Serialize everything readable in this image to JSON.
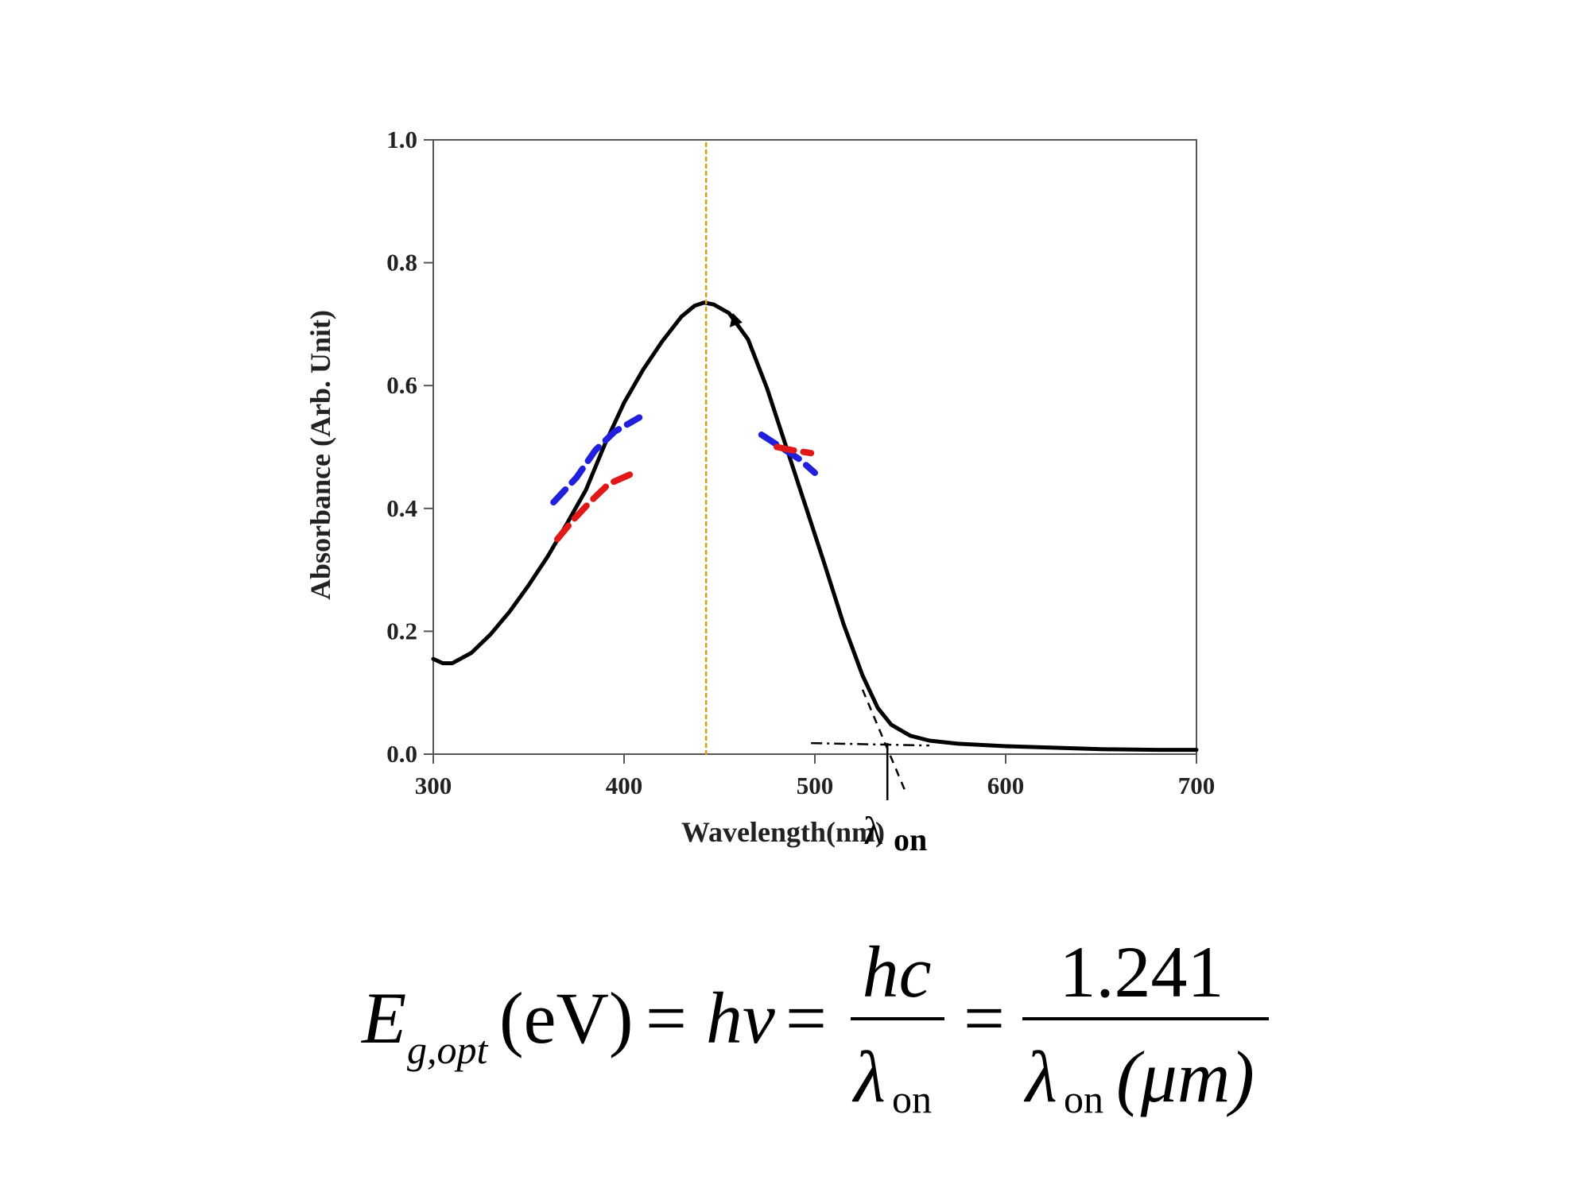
{
  "chart_data": {
    "type": "line",
    "title": "",
    "xlabel": "Wavelength(nm)",
    "ylabel": "Absorbance (Arb. Unit)",
    "xlim": [
      300,
      700
    ],
    "ylim": [
      0.0,
      1.0
    ],
    "x_ticks": [
      300,
      400,
      500,
      600,
      700
    ],
    "x_tick_labels": [
      "300",
      "400",
      "500",
      "600",
      "700"
    ],
    "y_ticks": [
      0.0,
      0.2,
      0.4,
      0.6,
      0.8,
      1.0
    ],
    "y_tick_labels": [
      "0.0",
      "0.2",
      "0.4",
      "0.6",
      "0.8",
      "1.0"
    ],
    "grid": false,
    "series": [
      {
        "name": "Absorbance",
        "color": "#000000",
        "style": "solid",
        "points": [
          [
            300,
            0.155
          ],
          [
            305,
            0.148
          ],
          [
            310,
            0.148
          ],
          [
            320,
            0.165
          ],
          [
            330,
            0.195
          ],
          [
            340,
            0.232
          ],
          [
            350,
            0.275
          ],
          [
            360,
            0.322
          ],
          [
            370,
            0.375
          ],
          [
            380,
            0.43
          ],
          [
            390,
            0.505
          ],
          [
            400,
            0.572
          ],
          [
            410,
            0.626
          ],
          [
            420,
            0.672
          ],
          [
            430,
            0.712
          ],
          [
            437,
            0.73
          ],
          [
            442,
            0.735
          ],
          [
            447,
            0.732
          ],
          [
            455,
            0.718
          ],
          [
            465,
            0.675
          ],
          [
            475,
            0.595
          ],
          [
            485,
            0.5
          ],
          [
            495,
            0.405
          ],
          [
            505,
            0.31
          ],
          [
            515,
            0.212
          ],
          [
            525,
            0.128
          ],
          [
            533,
            0.075
          ],
          [
            540,
            0.048
          ],
          [
            550,
            0.03
          ],
          [
            560,
            0.022
          ],
          [
            575,
            0.017
          ],
          [
            600,
            0.013
          ],
          [
            620,
            0.011
          ],
          [
            650,
            0.008
          ],
          [
            680,
            0.007
          ],
          [
            700,
            0.007
          ]
        ]
      },
      {
        "name": "Blue fit (rising edge)",
        "color": "#1f1fdc",
        "style": "dashed",
        "points": [
          [
            363,
            0.41
          ],
          [
            375,
            0.45
          ],
          [
            385,
            0.495
          ],
          [
            395,
            0.525
          ],
          [
            408,
            0.548
          ]
        ]
      },
      {
        "name": "Red fit (rising edge)",
        "color": "#e01818",
        "style": "dashed",
        "points": [
          [
            365,
            0.35
          ],
          [
            373,
            0.38
          ],
          [
            382,
            0.41
          ],
          [
            392,
            0.44
          ],
          [
            403,
            0.455
          ]
        ]
      },
      {
        "name": "Blue fit (falling edge)",
        "color": "#1f1fdc",
        "style": "dashed",
        "points": [
          [
            472,
            0.52
          ],
          [
            482,
            0.5
          ],
          [
            492,
            0.48
          ],
          [
            500,
            0.458
          ]
        ]
      },
      {
        "name": "Red fit (falling edge)",
        "color": "#e01818",
        "style": "dashed",
        "points": [
          [
            480,
            0.5
          ],
          [
            488,
            0.495
          ],
          [
            498,
            0.49
          ]
        ]
      },
      {
        "name": "Peak marker",
        "color": "#d4a017",
        "style": "dotted",
        "points": [
          [
            443,
            0.0
          ],
          [
            443,
            1.0
          ]
        ]
      }
    ],
    "annotations": {
      "onset_label": "λ",
      "onset_subscript": "on",
      "onset_wavelength_nm": 538,
      "tangent_line": [
        [
          525,
          0.105
        ],
        [
          548,
          -0.065
        ]
      ],
      "baseline_line": [
        [
          498,
          0.018
        ],
        [
          560,
          0.014
        ]
      ],
      "peak_arrow_at": [
        452,
        0.7
      ]
    }
  },
  "equation": {
    "lhs_symbol": "E",
    "lhs_subscript": "g,opt",
    "lhs_unit": "(eV)",
    "equals": "=",
    "hnu": "hν",
    "frac1_num": "hc",
    "frac1_den_symbol": "λ",
    "frac1_den_sub": "on",
    "frac2_num": "1.241",
    "frac2_den_symbol": "λ",
    "frac2_den_sub": "on",
    "frac2_den_unit": "(μm)"
  }
}
